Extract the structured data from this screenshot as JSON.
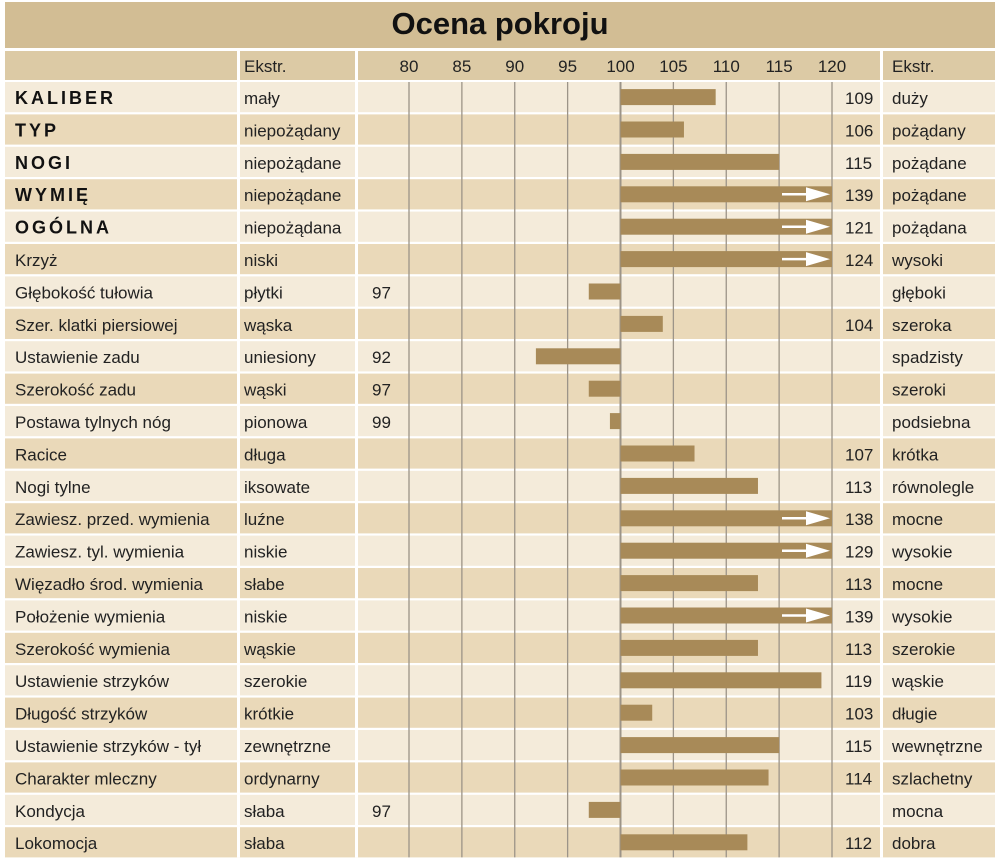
{
  "title": "Ocena pokroju",
  "colors": {
    "title_band": "#d2bd94",
    "header_band": "#dccaa5",
    "row_light": "#f4ebda",
    "row_dark": "#ead9b9",
    "bar": "#a88a58",
    "grid": "#9c9488",
    "arrow": "#ffffff"
  },
  "chart_data": {
    "type": "bar",
    "orientation": "horizontal",
    "title": "Ocena pokroju",
    "baseline": 100,
    "xlim": [
      80,
      120
    ],
    "ticks": [
      80,
      85,
      90,
      95,
      100,
      105,
      110,
      115,
      120
    ],
    "left_header": "Ekstr.",
    "right_header": "Ekstr.",
    "grid": true,
    "rows": [
      {
        "trait": "KALIBER",
        "bold": true,
        "low": "mały",
        "high": "duży",
        "value": 109
      },
      {
        "trait": "TYP",
        "bold": true,
        "low": "niepożądany",
        "high": "pożądany",
        "value": 106
      },
      {
        "trait": "NOGI",
        "bold": true,
        "low": "niepożądane",
        "high": "pożądane",
        "value": 115
      },
      {
        "trait": "WYMIĘ",
        "bold": true,
        "low": "niepożądane",
        "high": "pożądane",
        "value": 139
      },
      {
        "trait": "OGÓLNA",
        "bold": true,
        "low": "niepożądana",
        "high": "pożądana",
        "value": 121
      },
      {
        "trait": "Krzyż",
        "bold": false,
        "low": "niski",
        "high": "wysoki",
        "value": 124
      },
      {
        "trait": "Głębokość tułowia",
        "bold": false,
        "low": "płytki",
        "high": "głęboki",
        "value": 97
      },
      {
        "trait": "Szer. klatki piersiowej",
        "bold": false,
        "low": "wąska",
        "high": "szeroka",
        "value": 104
      },
      {
        "trait": "Ustawienie zadu",
        "bold": false,
        "low": "uniesiony",
        "high": "spadzisty",
        "value": 92
      },
      {
        "trait": "Szerokość zadu",
        "bold": false,
        "low": "wąski",
        "high": "szeroki",
        "value": 97
      },
      {
        "trait": "Postawa tylnych nóg",
        "bold": false,
        "low": "pionowa",
        "high": "podsiebna",
        "value": 99
      },
      {
        "trait": "Racice",
        "bold": false,
        "low": "długa",
        "high": "krótka",
        "value": 107
      },
      {
        "trait": "Nogi tylne",
        "bold": false,
        "low": "iksowate",
        "high": "równolegle",
        "value": 113
      },
      {
        "trait": "Zawiesz. przed. wymienia",
        "bold": false,
        "low": "luźne",
        "high": "mocne",
        "value": 138
      },
      {
        "trait": "Zawiesz. tyl. wymienia",
        "bold": false,
        "low": "niskie",
        "high": "wysokie",
        "value": 129
      },
      {
        "trait": "Więzadło środ. wymienia",
        "bold": false,
        "low": "słabe",
        "high": "mocne",
        "value": 113
      },
      {
        "trait": "Położenie wymienia",
        "bold": false,
        "low": "niskie",
        "high": "wysokie",
        "value": 139
      },
      {
        "trait": "Szerokość wymienia",
        "bold": false,
        "low": "wąskie",
        "high": "szerokie",
        "value": 113
      },
      {
        "trait": "Ustawienie strzyków",
        "bold": false,
        "low": "szerokie",
        "high": "wąskie",
        "value": 119
      },
      {
        "trait": "Długość strzyków",
        "bold": false,
        "low": "krótkie",
        "high": "długie",
        "value": 103
      },
      {
        "trait": "Ustawienie strzyków - tył",
        "bold": false,
        "low": "zewnętrzne",
        "high": "wewnętrzne",
        "value": 115
      },
      {
        "trait": "Charakter mleczny",
        "bold": false,
        "low": "ordynarny",
        "high": "szlachetny",
        "value": 114
      },
      {
        "trait": "Kondycja",
        "bold": false,
        "low": "słaba",
        "high": "mocna",
        "value": 97
      },
      {
        "trait": "Lokomocja",
        "bold": false,
        "low": "słaba",
        "high": "dobra",
        "value": 112
      }
    ]
  }
}
